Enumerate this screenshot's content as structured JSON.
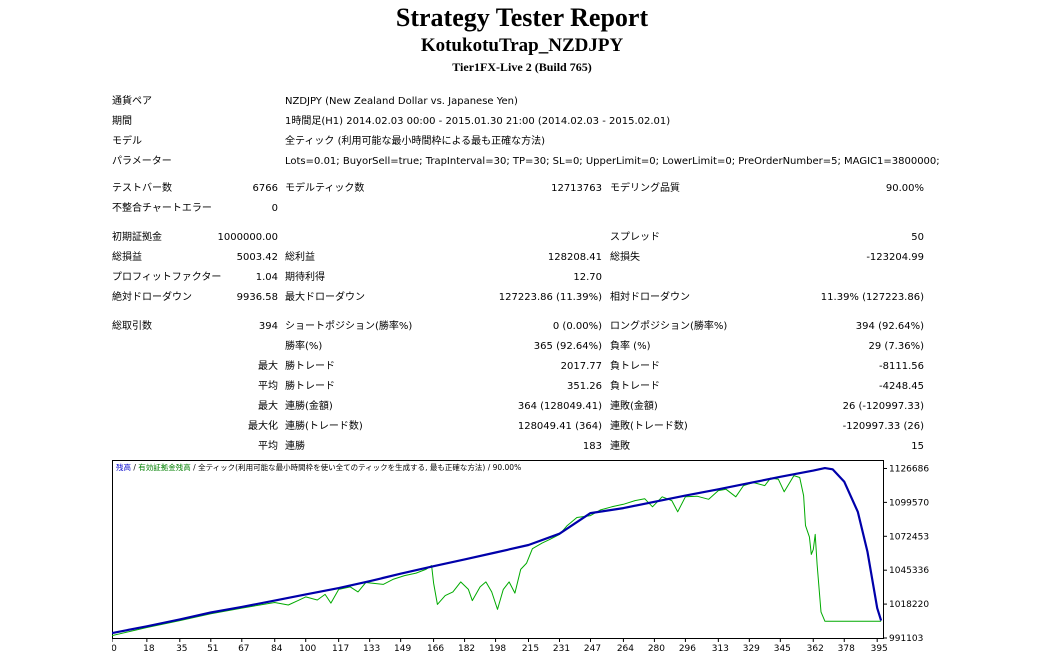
{
  "report": {
    "title": "Strategy Tester Report",
    "subtitle": "KotukotuTrap_NZDJPY",
    "server": "Tier1FX-Live 2 (Build 765)"
  },
  "info": [
    {
      "label": "通貨ペア",
      "value": "NZDJPY (New Zealand Dollar vs. Japanese Yen)"
    },
    {
      "label": "期間",
      "value": "1時間足(H1) 2014.02.03 00:00 - 2015.01.30 21:00 (2014.02.03 - 2015.02.01)"
    },
    {
      "label": "モデル",
      "value": "全ティック (利用可能な最小時間枠による最も正確な方法)"
    },
    {
      "label": "パラメーター",
      "value": "Lots=0.01; BuyorSell=true; TrapInterval=30; TP=30; SL=0; UpperLimit=0; LowerLimit=0; PreOrderNumber=5; MAGIC1=3800000;"
    }
  ],
  "bars": {
    "bars_label": "テストバー数",
    "bars_value": "6766",
    "ticks_label": "モデルティック数",
    "ticks_value": "12713763",
    "quality_label": "モデリング品質",
    "quality_value": "90.00%",
    "errors_label": "不整合チャートエラー",
    "errors_value": "0"
  },
  "summary": {
    "deposit_label": "初期証拠金",
    "deposit_value": "1000000.00",
    "spread_label": "スプレッド",
    "spread_value": "50",
    "net_label": "総損益",
    "net_value": "5003.42",
    "gross_profit_label": "総利益",
    "gross_profit_value": "128208.41",
    "gross_loss_label": "総損失",
    "gross_loss_value": "-123204.99",
    "pf_label": "プロフィットファクター",
    "pf_value": "1.04",
    "payoff_label": "期待利得",
    "payoff_value": "12.70",
    "abs_dd_label": "絶対ドローダウン",
    "abs_dd_value": "9936.58",
    "max_dd_label": "最大ドローダウン",
    "max_dd_value": "127223.86 (11.39%)",
    "rel_dd_label": "相対ドローダウン",
    "rel_dd_value": "11.39% (127223.86)"
  },
  "trades": {
    "total_label": "総取引数",
    "total_value": "394",
    "short_label": "ショートポジション(勝率%)",
    "short_value": "0 (0.00%)",
    "long_label": "ロングポジション(勝率%)",
    "long_value": "394 (92.64%)",
    "win_pct_label": "勝率(%)",
    "win_pct_value": "365 (92.64%)",
    "loss_pct_label": "負率 (%)",
    "loss_pct_value": "29 (7.36%)",
    "max_label": "最大",
    "max_win_label": "勝トレード",
    "max_win_value": "2017.77",
    "max_loss_label": "負トレード",
    "max_loss_value": "-8111.56",
    "avg_label": "平均",
    "avg_win_label": "勝トレード",
    "avg_win_value": "351.26",
    "avg_loss_label": "負トレード",
    "avg_loss_value": "-4248.45",
    "max_consec_label": "最大",
    "max_consec_wins_label": "連勝(金額)",
    "max_consec_wins_value": "364 (128049.41)",
    "max_consec_losses_label": "連敗(金額)",
    "max_consec_losses_value": "26 (-120997.33)",
    "maximal_label": "最大化",
    "maximal_wins_label": "連勝(トレード数)",
    "maximal_wins_value": "128049.41 (364)",
    "maximal_losses_label": "連敗(トレード数)",
    "maximal_losses_value": "-120997.33 (26)",
    "avg_consec_label": "平均",
    "avg_consec_wins_label": "連勝",
    "avg_consec_wins_value": "183",
    "avg_consec_losses_label": "連敗",
    "avg_consec_losses_value": "15"
  },
  "chart_legend": {
    "balance": "残高",
    "equity": "有効証拠金残高",
    "model": "全ティック(利用可能な最小時間枠を使い全てのティックを生成する, 最も正確な方法)",
    "quality": "90.00%"
  },
  "chart_data": {
    "type": "line",
    "x_ticks": [
      0,
      18,
      35,
      51,
      67,
      84,
      100,
      117,
      133,
      149,
      166,
      182,
      198,
      215,
      231,
      247,
      264,
      280,
      296,
      313,
      329,
      345,
      362,
      378,
      395
    ],
    "x_tick_labels": [
      "0",
      "18",
      "35",
      "51",
      "67",
      "84",
      "100",
      "117",
      "133",
      "149",
      "166",
      "182",
      "198",
      "215",
      "231",
      "247",
      "264",
      "280",
      "296",
      "313",
      "329",
      "345",
      "362",
      "378",
      "395"
    ],
    "y_ticks": [
      991103,
      1018220,
      1045336,
      1072453,
      1099570,
      1126686
    ],
    "y_tick_labels": [
      "991103",
      "1018220",
      "1045336",
      "1072453",
      "1099570",
      "1126686"
    ],
    "xlim": [
      0,
      398
    ],
    "ylim": [
      991103,
      1133470
    ],
    "series": [
      {
        "name": "残高",
        "color": "#0000aa",
        "points": [
          [
            0,
            995000
          ],
          [
            18,
            1000500
          ],
          [
            35,
            1006000
          ],
          [
            51,
            1011500
          ],
          [
            67,
            1016000
          ],
          [
            84,
            1021000
          ],
          [
            100,
            1026000
          ],
          [
            117,
            1031000
          ],
          [
            133,
            1036500
          ],
          [
            149,
            1042500
          ],
          [
            166,
            1048500
          ],
          [
            182,
            1054000
          ],
          [
            198,
            1059500
          ],
          [
            215,
            1065500
          ],
          [
            231,
            1074500
          ],
          [
            247,
            1091000
          ],
          [
            264,
            1095000
          ],
          [
            280,
            1100000
          ],
          [
            296,
            1105000
          ],
          [
            313,
            1110000
          ],
          [
            329,
            1115000
          ],
          [
            345,
            1120000
          ],
          [
            362,
            1125000
          ],
          [
            368,
            1127000
          ],
          [
            372,
            1126000
          ],
          [
            378,
            1116000
          ],
          [
            385,
            1092000
          ],
          [
            390,
            1060000
          ],
          [
            395,
            1015000
          ],
          [
            397,
            1005000
          ]
        ]
      },
      {
        "name": "有効証拠金残高",
        "color": "#00aa00",
        "points": [
          [
            0,
            993000
          ],
          [
            18,
            999500
          ],
          [
            35,
            1005000
          ],
          [
            51,
            1010500
          ],
          [
            67,
            1015000
          ],
          [
            84,
            1019500
          ],
          [
            91,
            1017500
          ],
          [
            96,
            1021000
          ],
          [
            100,
            1024000
          ],
          [
            106,
            1021500
          ],
          [
            110,
            1026000
          ],
          [
            113,
            1019000
          ],
          [
            117,
            1030000
          ],
          [
            123,
            1032000
          ],
          [
            127,
            1028000
          ],
          [
            131,
            1035500
          ],
          [
            140,
            1034000
          ],
          [
            145,
            1038000
          ],
          [
            151,
            1041000
          ],
          [
            157,
            1043000
          ],
          [
            162,
            1046000
          ],
          [
            165,
            1049000
          ],
          [
            166,
            1035000
          ],
          [
            168,
            1018000
          ],
          [
            172,
            1025000
          ],
          [
            176,
            1028000
          ],
          [
            180,
            1036000
          ],
          [
            184,
            1030000
          ],
          [
            186,
            1021000
          ],
          [
            190,
            1032000
          ],
          [
            193,
            1036000
          ],
          [
            196,
            1028000
          ],
          [
            199,
            1014000
          ],
          [
            202,
            1030000
          ],
          [
            205,
            1036000
          ],
          [
            208,
            1027000
          ],
          [
            211,
            1046000
          ],
          [
            214,
            1051000
          ],
          [
            217,
            1062500
          ],
          [
            222,
            1067000
          ],
          [
            226,
            1070000
          ],
          [
            231,
            1074000
          ],
          [
            235,
            1081000
          ],
          [
            240,
            1087500
          ],
          [
            247,
            1089000
          ],
          [
            252,
            1093500
          ],
          [
            258,
            1096000
          ],
          [
            264,
            1098000
          ],
          [
            270,
            1101000
          ],
          [
            275,
            1102500
          ],
          [
            279,
            1096000
          ],
          [
            284,
            1104000
          ],
          [
            289,
            1101000
          ],
          [
            292,
            1092000
          ],
          [
            296,
            1104000
          ],
          [
            302,
            1104500
          ],
          [
            308,
            1102000
          ],
          [
            313,
            1109000
          ],
          [
            317,
            1110000
          ],
          [
            322,
            1104000
          ],
          [
            326,
            1113000
          ],
          [
            331,
            1115500
          ],
          [
            337,
            1113000
          ],
          [
            340,
            1119000
          ],
          [
            344,
            1118000
          ],
          [
            347,
            1108000
          ],
          [
            352,
            1121000
          ],
          [
            355,
            1119500
          ],
          [
            357,
            1105000
          ],
          [
            358,
            1081000
          ],
          [
            360,
            1072000
          ],
          [
            361,
            1058000
          ],
          [
            362,
            1062000
          ],
          [
            363,
            1074000
          ],
          [
            364,
            1050000
          ],
          [
            366,
            1012000
          ],
          [
            368,
            1004500
          ],
          [
            397,
            1004500
          ]
        ]
      }
    ]
  }
}
